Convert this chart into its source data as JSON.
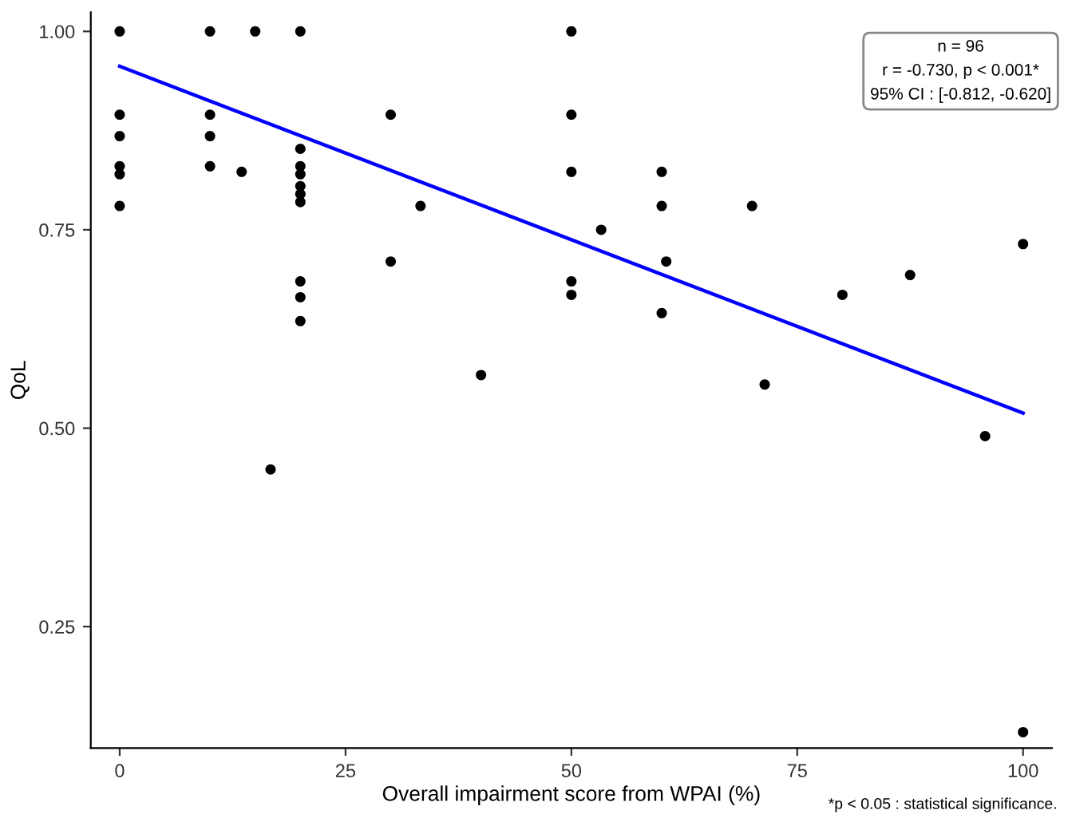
{
  "chart_data": {
    "type": "scatter",
    "xlabel": "Overall impairment score from WPAI (%)",
    "ylabel": "QoL",
    "xlim": [
      -3.2,
      103.2
    ],
    "ylim": [
      0.097,
      1.024
    ],
    "xticks": [
      0,
      25,
      50,
      75,
      100
    ],
    "yticks": [
      {
        "value": 0.25,
        "label": "0.25"
      },
      {
        "value": 0.5,
        "label": "0.50"
      },
      {
        "value": 0.75,
        "label": "0.75"
      },
      {
        "value": 1.0,
        "label": "1.00"
      }
    ],
    "grid": false,
    "legend": false,
    "series": [
      {
        "color": "#000000",
        "marker": "circle",
        "x": [
          0,
          0,
          0,
          0,
          0,
          0,
          10,
          10,
          10,
          10,
          13.5,
          15,
          20,
          20,
          20,
          20,
          20,
          20,
          20,
          20,
          20,
          20,
          16.7,
          30,
          30,
          33.3,
          40,
          50,
          50,
          50,
          50,
          50,
          53.3,
          60,
          60,
          60,
          60.5,
          70,
          71.4,
          80,
          87.5,
          100,
          100,
          95.8
        ],
        "values": [
          1.0,
          0.895,
          0.868,
          0.83,
          0.82,
          0.78,
          1.0,
          0.895,
          0.868,
          0.83,
          0.823,
          1.0,
          1.0,
          0.852,
          0.83,
          0.82,
          0.805,
          0.795,
          0.785,
          0.685,
          0.665,
          0.635,
          0.448,
          0.895,
          0.71,
          0.78,
          0.567,
          1.0,
          0.895,
          0.823,
          0.685,
          0.668,
          0.75,
          0.823,
          0.78,
          0.645,
          0.71,
          0.78,
          0.555,
          0.668,
          0.693,
          0.732,
          0.117,
          0.49
        ]
      },
      {
        "type": "line",
        "color": "#0000ff",
        "marker": "none",
        "line_style": "solid",
        "x": [
          0,
          100
        ],
        "values": [
          0.956,
          0.519
        ]
      }
    ],
    "annotations": [
      "n = 96\nr = -0.730, p < 0.001*\n95% CI : [-0.812, -0.620]",
      "*p < 0.05 : statistical significance."
    ]
  }
}
